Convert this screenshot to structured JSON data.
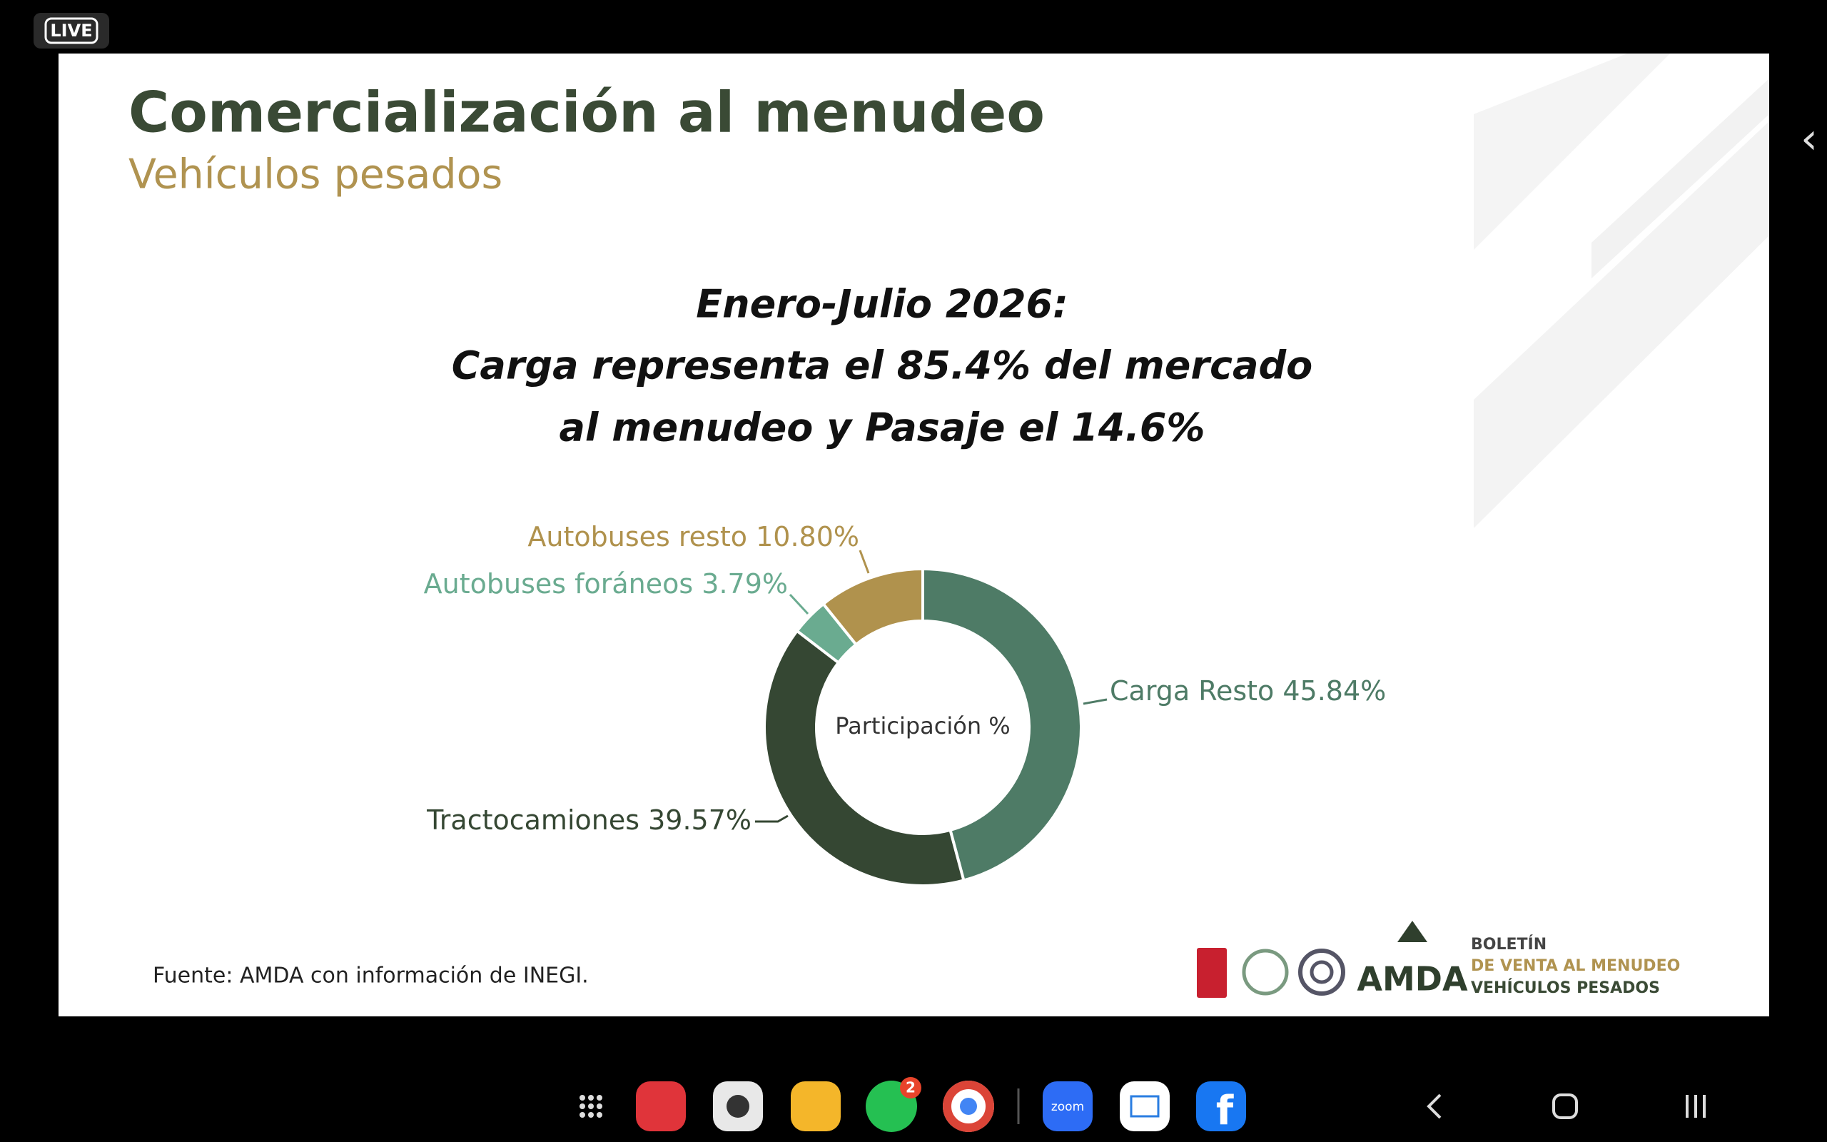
{
  "live_badge": "LIVE",
  "slide": {
    "title": "Comercialización al menudeo",
    "subtitle": "Vehículos pesados",
    "heading": [
      "Enero-Julio 2026:",
      "Carga representa el 85.4% del mercado",
      "al menudeo y Pasaje el 14.6%"
    ],
    "source": "Fuente: AMDA con información de INEGI.",
    "logo": {
      "brand": "AMDA",
      "lines": [
        "BOLETÍN",
        "DE VENTA AL MENUDEO",
        "VEHÍCULOS PESADOS"
      ]
    }
  },
  "chart_data": {
    "type": "donut",
    "center_label": "Participación %",
    "categories": [
      "Carga Resto",
      "Tractocamiones",
      "Autobuses foráneos",
      "Autobuses resto"
    ],
    "values": [
      45.84,
      39.57,
      3.79,
      10.8
    ],
    "value_labels": [
      "45.84%",
      "39.57%",
      "3.79%",
      "10.80%"
    ],
    "colors": [
      "#4e7b66",
      "#354733",
      "#6aab90",
      "#b0924d"
    ]
  },
  "taskbar": {
    "whatsapp_badge": "2",
    "zoom_label": "zoom"
  }
}
